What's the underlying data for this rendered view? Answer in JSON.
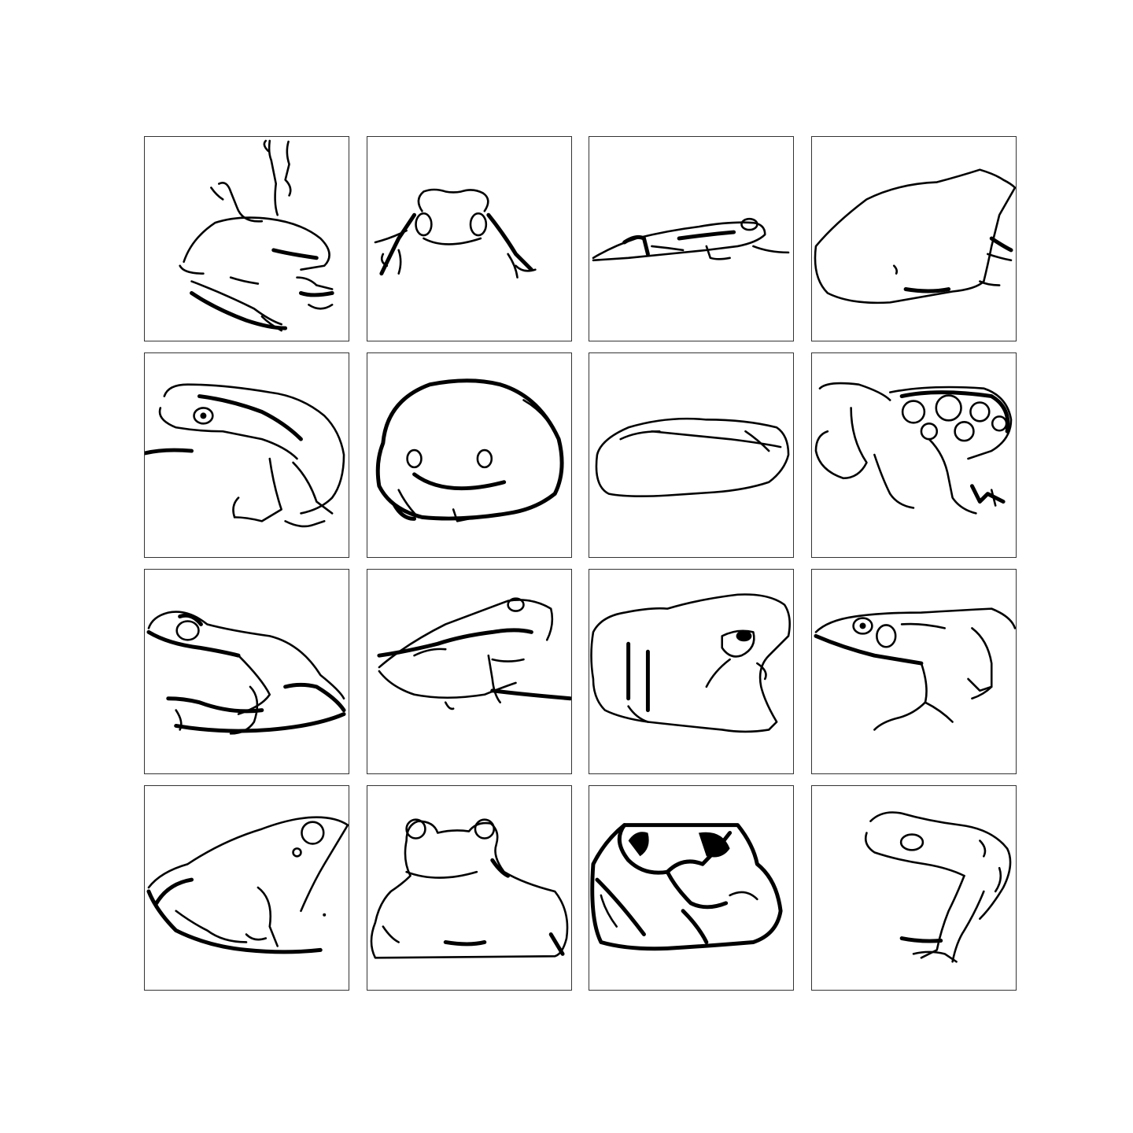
{
  "grid": {
    "rows": 4,
    "columns": 4,
    "cells": [
      {
        "subject": "frog-climbing-icon"
      },
      {
        "subject": "frog-front-view-icon"
      },
      {
        "subject": "frog-flat-lying-icon"
      },
      {
        "subject": "frog-sitting-right-icon"
      },
      {
        "subject": "frog-side-striped-icon"
      },
      {
        "subject": "frog-round-front-icon"
      },
      {
        "subject": "frog-flat-body-icon"
      },
      {
        "subject": "frog-spotted-icon"
      },
      {
        "subject": "frog-side-left-icon"
      },
      {
        "subject": "frog-crouching-icon"
      },
      {
        "subject": "toad-sitting-icon"
      },
      {
        "subject": "frog-side-left-2-icon"
      },
      {
        "subject": "frog-side-right-icon"
      },
      {
        "subject": "frog-front-sitting-icon"
      },
      {
        "subject": "frog-dark-pattern-icon"
      },
      {
        "subject": "frog-treefrog-icon"
      }
    ],
    "colors": {
      "line": "#000000",
      "background": "#ffffff",
      "border": "#333333"
    }
  }
}
